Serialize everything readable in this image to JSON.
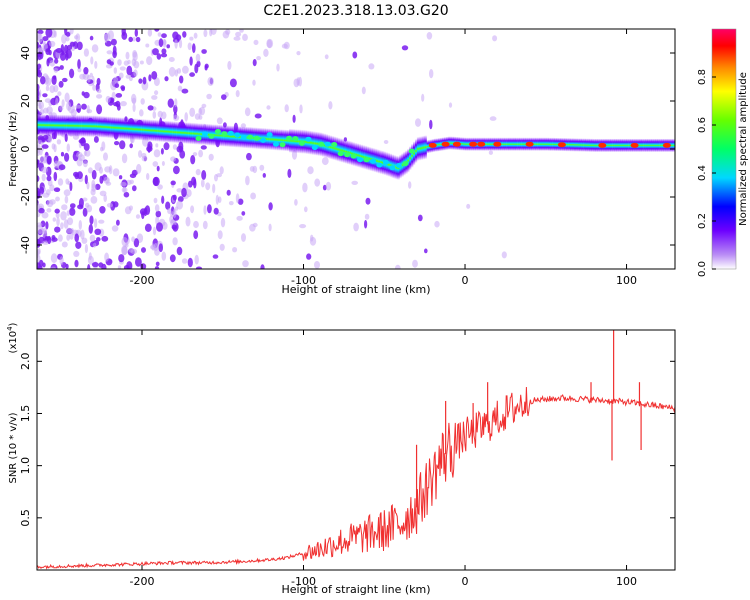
{
  "title": "C2E1.2023.318.13.03.G20",
  "chart_data": [
    {
      "type": "heatmap",
      "name": "spectrogram",
      "xlabel": "Height of straight line (km)",
      "ylabel": "Frequency (Hz)",
      "xlim": [
        -265,
        130
      ],
      "ylim": [
        -50,
        50
      ],
      "x_ticks": [
        -200,
        -100,
        0,
        100
      ],
      "x_tick_labels": [
        "-200",
        "-100",
        "0",
        "100"
      ],
      "y_ticks": [
        -40,
        -20,
        0,
        20,
        40
      ],
      "y_tick_labels": [
        "-40",
        "-20",
        "0",
        "20",
        "40"
      ],
      "ridge": {
        "x": [
          -265,
          -230,
          -200,
          -180,
          -160,
          -140,
          -120,
          -100,
          -90,
          -80,
          -70,
          -60,
          -50,
          -42,
          -36,
          -30,
          -20,
          -10,
          0,
          20,
          50,
          80,
          100,
          130
        ],
        "freq": [
          10,
          9.5,
          8,
          7,
          6,
          5,
          4,
          3,
          2,
          0,
          -2,
          -4,
          -6,
          -8,
          -5,
          0,
          1.5,
          2.5,
          2,
          2,
          2,
          1.5,
          1.5,
          1.5
        ]
      },
      "colorbar": {
        "label": "Normalized spectral amplitude",
        "range": [
          0,
          1
        ],
        "ticks": [
          0.0,
          0.2,
          0.4,
          0.6,
          0.8
        ],
        "tick_labels": [
          "0.0",
          "0.2",
          "0.4",
          "0.6",
          "0.8"
        ]
      }
    },
    {
      "type": "line",
      "name": "snr",
      "xlabel": "Height of straight line (km)",
      "ylabel": "SNR (10 * v/v)",
      "scale_label": "(x10",
      "scale_exponent": "4",
      "scale_close": ")",
      "xlim": [
        -265,
        130
      ],
      "ylim": [
        0,
        2.3
      ],
      "x_ticks": [
        -200,
        -100,
        0,
        100
      ],
      "x_tick_labels": [
        "-200",
        "-100",
        "0",
        "100"
      ],
      "y_ticks": [
        0.5,
        1.0,
        1.5,
        2.0
      ],
      "y_tick_labels": [
        "0.5",
        "1.0",
        "1.5",
        "2.0"
      ],
      "series": [
        {
          "name": "SNR",
          "color": "#f03030",
          "x": [
            -265,
            -240,
            -220,
            -200,
            -180,
            -160,
            -140,
            -120,
            -110,
            -100,
            -90,
            -80,
            -70,
            -60,
            -50,
            -40,
            -30,
            -25,
            -20,
            -15,
            -10,
            -5,
            0,
            10,
            20,
            30,
            40,
            60,
            80,
            90,
            100,
            110,
            120,
            130
          ],
          "y": [
            0.03,
            0.04,
            0.05,
            0.06,
            0.07,
            0.07,
            0.08,
            0.1,
            0.12,
            0.16,
            0.2,
            0.26,
            0.3,
            0.34,
            0.38,
            0.45,
            0.6,
            0.75,
            0.9,
            1.05,
            1.15,
            1.22,
            1.28,
            1.36,
            1.45,
            1.55,
            1.62,
            1.65,
            1.63,
            1.62,
            1.61,
            1.59,
            1.57,
            1.55
          ]
        }
      ],
      "spikes": [
        {
          "x": -30,
          "y": 1.2
        },
        {
          "x": -20,
          "y": 0.9
        },
        {
          "x": -12,
          "y": 1.62
        },
        {
          "x": 5,
          "y": 1.6
        },
        {
          "x": 14,
          "y": 1.8
        },
        {
          "x": 78,
          "y": 1.8
        },
        {
          "x": 92,
          "y": 2.3
        },
        {
          "x": 108,
          "y": 1.8
        }
      ],
      "dips": [
        {
          "x": 91,
          "y": 1.05
        },
        {
          "x": 109,
          "y": 1.15
        }
      ]
    }
  ]
}
